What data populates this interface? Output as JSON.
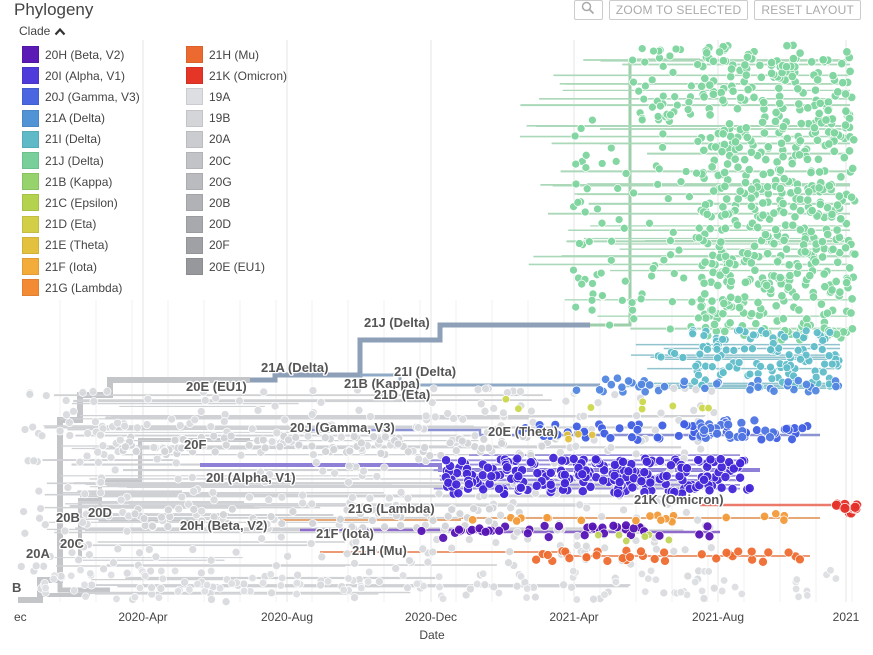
{
  "title": "Phylogeny",
  "toolbar": {
    "zoom_icon": "zoom-icon",
    "zoom_label": "ZOOM TO SELECTED",
    "reset_label": "RESET LAYOUT"
  },
  "legend": {
    "header": "Clade",
    "toggle_icon": "chevron-up-icon",
    "items": [
      {
        "label": "20H (Beta, V2)",
        "color": "#5b1ab5"
      },
      {
        "label": "20I (Alpha, V1)",
        "color": "#4f3bd9"
      },
      {
        "label": "20J (Gamma, V3)",
        "color": "#4a66e0"
      },
      {
        "label": "21A (Delta)",
        "color": "#5194d6"
      },
      {
        "label": "21I (Delta)",
        "color": "#5fb9c7"
      },
      {
        "label": "21J (Delta)",
        "color": "#79cf9a"
      },
      {
        "label": "21B (Kappa)",
        "color": "#96d36c"
      },
      {
        "label": "21C (Epsilon)",
        "color": "#b5d24f"
      },
      {
        "label": "21D (Eta)",
        "color": "#d2cf47"
      },
      {
        "label": "21E (Theta)",
        "color": "#e3c13f"
      },
      {
        "label": "21F (Iota)",
        "color": "#f3ab3a"
      },
      {
        "label": "21G (Lambda)",
        "color": "#f38b35"
      },
      {
        "label": "21H (Mu)",
        "color": "#ec6a2f"
      },
      {
        "label": "21K (Omicron)",
        "color": "#e53526"
      },
      {
        "label": "19A",
        "color": "#dcdee1"
      },
      {
        "label": "19B",
        "color": "#d3d5d8"
      },
      {
        "label": "20A",
        "color": "#cacccf"
      },
      {
        "label": "20C",
        "color": "#c1c3c6"
      },
      {
        "label": "20G",
        "color": "#b9bbbf"
      },
      {
        "label": "20B",
        "color": "#b0b2b6"
      },
      {
        "label": "20D",
        "color": "#a7a9ad"
      },
      {
        "label": "20F",
        "color": "#9fa1a5"
      },
      {
        "label": "20E (EU1)",
        "color": "#96989c"
      }
    ]
  },
  "chart_data": {
    "type": "scatter",
    "xlabel": "Date",
    "x_ticks": [
      "ec",
      "2020-Apr",
      "2020-Aug",
      "2020-Dec",
      "2021-Apr",
      "2021-Aug",
      "2021"
    ],
    "grid": true,
    "clade_labels": [
      "21J (Delta)",
      "21A (Delta)",
      "21I (Delta)",
      "21B (Kappa)",
      "21D (Eta)",
      "20E (EU1)",
      "20J (Gamma, V3)",
      "20F",
      "20E (Theta)",
      "20I (Alpha, V1)",
      "21G (Lambda)",
      "21K (Omicron)",
      "20B",
      "20D",
      "21F (Iota)",
      "20H (Beta, V2)",
      "20C",
      "21H (Mu)",
      "20A",
      "B"
    ],
    "series": [
      {
        "name": "21J (Delta)",
        "color": "#79cf9a",
        "date_range": [
          "2021-Apr",
          "2021"
        ],
        "approx_tips": 1500
      },
      {
        "name": "21I (Delta)",
        "color": "#5fb9c7",
        "date_range": [
          "2021-Jun",
          "2021"
        ],
        "approx_tips": 300
      },
      {
        "name": "21A (Delta)",
        "color": "#5194d6",
        "date_range": [
          "2021-Mar",
          "2021"
        ],
        "approx_tips": 60
      },
      {
        "name": "20J (Gamma, V3)",
        "color": "#4a66e0",
        "date_range": [
          "2021-Jan",
          "2021-Nov"
        ],
        "approx_tips": 120
      },
      {
        "name": "20I (Alpha, V1)",
        "color": "#4f3bd9",
        "date_range": [
          "2020-Dec",
          "2021-Sep"
        ],
        "approx_tips": 500
      },
      {
        "name": "20H (Beta, V2)",
        "color": "#5b1ab5",
        "date_range": [
          "2021-Jan",
          "2021-Aug"
        ],
        "approx_tips": 80
      },
      {
        "name": "21G (Lambda)",
        "color": "#f38b35",
        "date_range": [
          "2021-Jan",
          "2021-Nov"
        ],
        "approx_tips": 60
      },
      {
        "name": "21H (Mu)",
        "color": "#ec6a2f",
        "date_range": [
          "2021-Apr",
          "2021-Nov"
        ],
        "approx_tips": 50
      },
      {
        "name": "21K (Omicron)",
        "color": "#e53526",
        "date_range": [
          "2021-Nov",
          "2021"
        ],
        "approx_tips": 20
      },
      {
        "name": "21E (Theta)",
        "color": "#e3c13f",
        "date_range": [
          "2021-Apr",
          "2021-Aug"
        ],
        "approx_tips": 10
      },
      {
        "name": "21C (Epsilon)",
        "color": "#b5d24f",
        "date_range": [
          "2021-Jan",
          "2021-May"
        ],
        "approx_tips": 12
      },
      {
        "name": "background",
        "color": "#c9cbce",
        "date_range": [
          "ec",
          "2021"
        ],
        "approx_tips": 900
      }
    ]
  }
}
